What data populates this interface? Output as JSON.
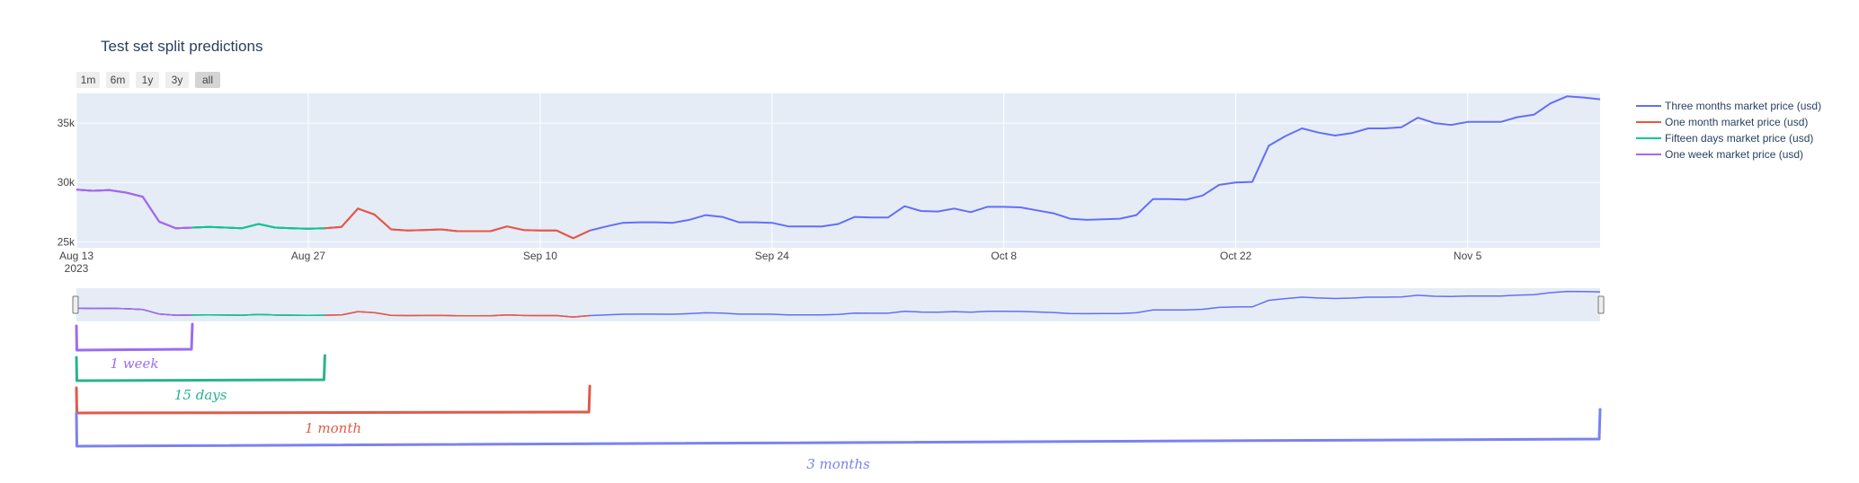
{
  "title": "Test set split predictions",
  "range_buttons": [
    {
      "label": "1m",
      "active": false
    },
    {
      "label": "6m",
      "active": false
    },
    {
      "label": "1y",
      "active": false
    },
    {
      "label": "3y",
      "active": false
    },
    {
      "label": "all",
      "active": true
    }
  ],
  "chart_data": {
    "type": "line",
    "title": "Test set split predictions",
    "xlabel": "",
    "ylabel": "",
    "grid": true,
    "legend_position": "right",
    "x_range": [
      "2023-08-13",
      "2023-11-13"
    ],
    "y_range": [
      24500,
      37500
    ],
    "x_ticks": [
      {
        "date": "2023-08-13",
        "label": "Aug 13",
        "sublabel": "2023"
      },
      {
        "date": "2023-08-27",
        "label": "Aug 27",
        "sublabel": ""
      },
      {
        "date": "2023-09-10",
        "label": "Sep 10",
        "sublabel": ""
      },
      {
        "date": "2023-09-24",
        "label": "Sep 24",
        "sublabel": ""
      },
      {
        "date": "2023-10-08",
        "label": "Oct 8",
        "sublabel": ""
      },
      {
        "date": "2023-10-22",
        "label": "Oct 22",
        "sublabel": ""
      },
      {
        "date": "2023-11-05",
        "label": "Nov 5",
        "sublabel": ""
      }
    ],
    "y_ticks": [
      {
        "value": 25000,
        "label": "25k"
      },
      {
        "value": 30000,
        "label": "30k"
      },
      {
        "value": 35000,
        "label": "35k"
      }
    ],
    "series": [
      {
        "name": "Three months market price (usd)",
        "color": "#636efa",
        "x_start": "2023-08-13",
        "x_end": "2023-11-13",
        "values": [
          29400,
          29300,
          29350,
          29150,
          28800,
          26700,
          26150,
          26200,
          26250,
          26200,
          26150,
          26500,
          26200,
          26150,
          26100,
          26150,
          26250,
          27800,
          27300,
          26050,
          25950,
          26000,
          26050,
          25900,
          25900,
          25900,
          26300,
          26000,
          25950,
          25950,
          25300,
          25950,
          26300,
          26600,
          26650,
          26650,
          26600,
          26850,
          27250,
          27100,
          26650,
          26650,
          26600,
          26300,
          26300,
          26300,
          26500,
          27100,
          27050,
          27050,
          28000,
          27600,
          27550,
          27800,
          27500,
          27950,
          27950,
          27900,
          27650,
          27400,
          26950,
          26850,
          26900,
          26950,
          27250,
          28600,
          28600,
          28550,
          28900,
          29800,
          30000,
          30050,
          33100,
          33900,
          34550,
          34200,
          33950,
          34150,
          34550,
          34550,
          34650,
          35450,
          35000,
          34850,
          35100,
          35100,
          35100,
          35500,
          35700,
          36650,
          37250,
          37150,
          37000
        ]
      },
      {
        "name": "One month market price (usd)",
        "color": "#ef553b",
        "x_start": "2023-08-13",
        "x_end": "2023-09-13",
        "values": [
          29400,
          29300,
          29350,
          29150,
          28800,
          26700,
          26150,
          26200,
          26250,
          26200,
          26150,
          26500,
          26200,
          26150,
          26100,
          26150,
          26250,
          27800,
          27300,
          26050,
          25950,
          26000,
          26050,
          25900,
          25900,
          25900,
          26300,
          26000,
          25950,
          25950,
          25300,
          25950
        ]
      },
      {
        "name": "Fifteen days market price (usd)",
        "color": "#00cc96",
        "x_start": "2023-08-13",
        "x_end": "2023-08-28",
        "values": [
          29400,
          29300,
          29350,
          29150,
          28800,
          26700,
          26150,
          26200,
          26250,
          26200,
          26150,
          26500,
          26200,
          26150,
          26100,
          26150
        ]
      },
      {
        "name": "One week market price (usd)",
        "color": "#ab63fa",
        "x_start": "2023-08-13",
        "x_end": "2023-08-20",
        "values": [
          29400,
          29300,
          29350,
          29150,
          28800,
          26700,
          26150,
          26200
        ]
      }
    ],
    "annotations": [
      {
        "text": "1 week",
        "color": "#9b6df0",
        "x_start": "2023-08-13",
        "x_end": "2023-08-20"
      },
      {
        "text": "15 days",
        "color": "#2bb38c",
        "x_start": "2023-08-13",
        "x_end": "2023-08-28"
      },
      {
        "text": "1 month",
        "color": "#e05a4a",
        "x_start": "2023-08-13",
        "x_end": "2023-09-13"
      },
      {
        "text": "3 months",
        "color": "#7a82ef",
        "x_start": "2023-08-13",
        "x_end": "2023-11-13"
      }
    ]
  }
}
